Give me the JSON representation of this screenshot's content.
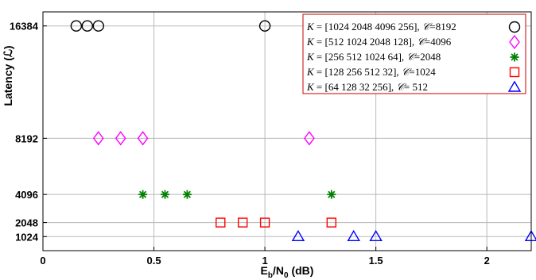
{
  "chart_data": {
    "type": "scatter",
    "title": "",
    "xlabel": "E_b/N_0 (dB)",
    "xlabel_main": "E",
    "xlabel_sub1": "b",
    "xlabel_mid": "/N",
    "xlabel_sub2": "0",
    "xlabel_unit": " (dB)",
    "ylabel": "Latency (ℒ)",
    "xlim": [
      0,
      2.2
    ],
    "ylim": [
      0,
      17408
    ],
    "xticks": [
      0,
      0.5,
      1,
      1.5,
      2
    ],
    "xtick_labels": [
      "0",
      "0.5",
      "1",
      "1.5",
      "2"
    ],
    "yticks": [
      1024,
      2048,
      4096,
      8192,
      16384
    ],
    "ytick_labels": [
      "1024",
      "2048",
      "4096",
      "8192",
      "16384"
    ],
    "grid": true,
    "legend_position": "top-right",
    "series": [
      {
        "K_label": "K",
        "K_values": "= [1024  2048  4096  256],",
        "C_label": "𝒞",
        "C_value": "=8192",
        "marker": "circle",
        "color": "#000000",
        "points": [
          [
            0.15,
            16384
          ],
          [
            0.2,
            16384
          ],
          [
            0.25,
            16384
          ],
          [
            1.0,
            16384
          ]
        ]
      },
      {
        "K_label": "K",
        "K_values": "= [512    1024  2048  128],",
        "C_label": "𝒞",
        "C_value": "=4096",
        "marker": "diamond",
        "color": "#ff00ff",
        "points": [
          [
            0.25,
            8192
          ],
          [
            0.35,
            8192
          ],
          [
            0.45,
            8192
          ],
          [
            1.2,
            8192
          ]
        ]
      },
      {
        "K_label": "K",
        "K_values": "= [256    512    1024  64],",
        "C_label": "𝒞",
        "C_value": "=2048",
        "marker": "asterisk",
        "color": "#008000",
        "points": [
          [
            0.45,
            4096
          ],
          [
            0.55,
            4096
          ],
          [
            0.65,
            4096
          ],
          [
            1.3,
            4096
          ]
        ]
      },
      {
        "K_label": "K",
        "K_values": "= [128    256    512    32],",
        "C_label": "𝒞",
        "C_value": "=1024",
        "marker": "square",
        "color": "#ff0000",
        "points": [
          [
            0.8,
            2048
          ],
          [
            0.9,
            2048
          ],
          [
            1.0,
            2048
          ],
          [
            1.3,
            2048
          ]
        ]
      },
      {
        "K_label": "K",
        "K_values": "= [64      128    32      256],",
        "C_label": "𝒞",
        "C_value": "= 512",
        "marker": "triangle",
        "color": "#0000ff",
        "points": [
          [
            1.15,
            1024
          ],
          [
            1.4,
            1024
          ],
          [
            1.5,
            1024
          ],
          [
            2.2,
            1024
          ]
        ]
      }
    ]
  }
}
